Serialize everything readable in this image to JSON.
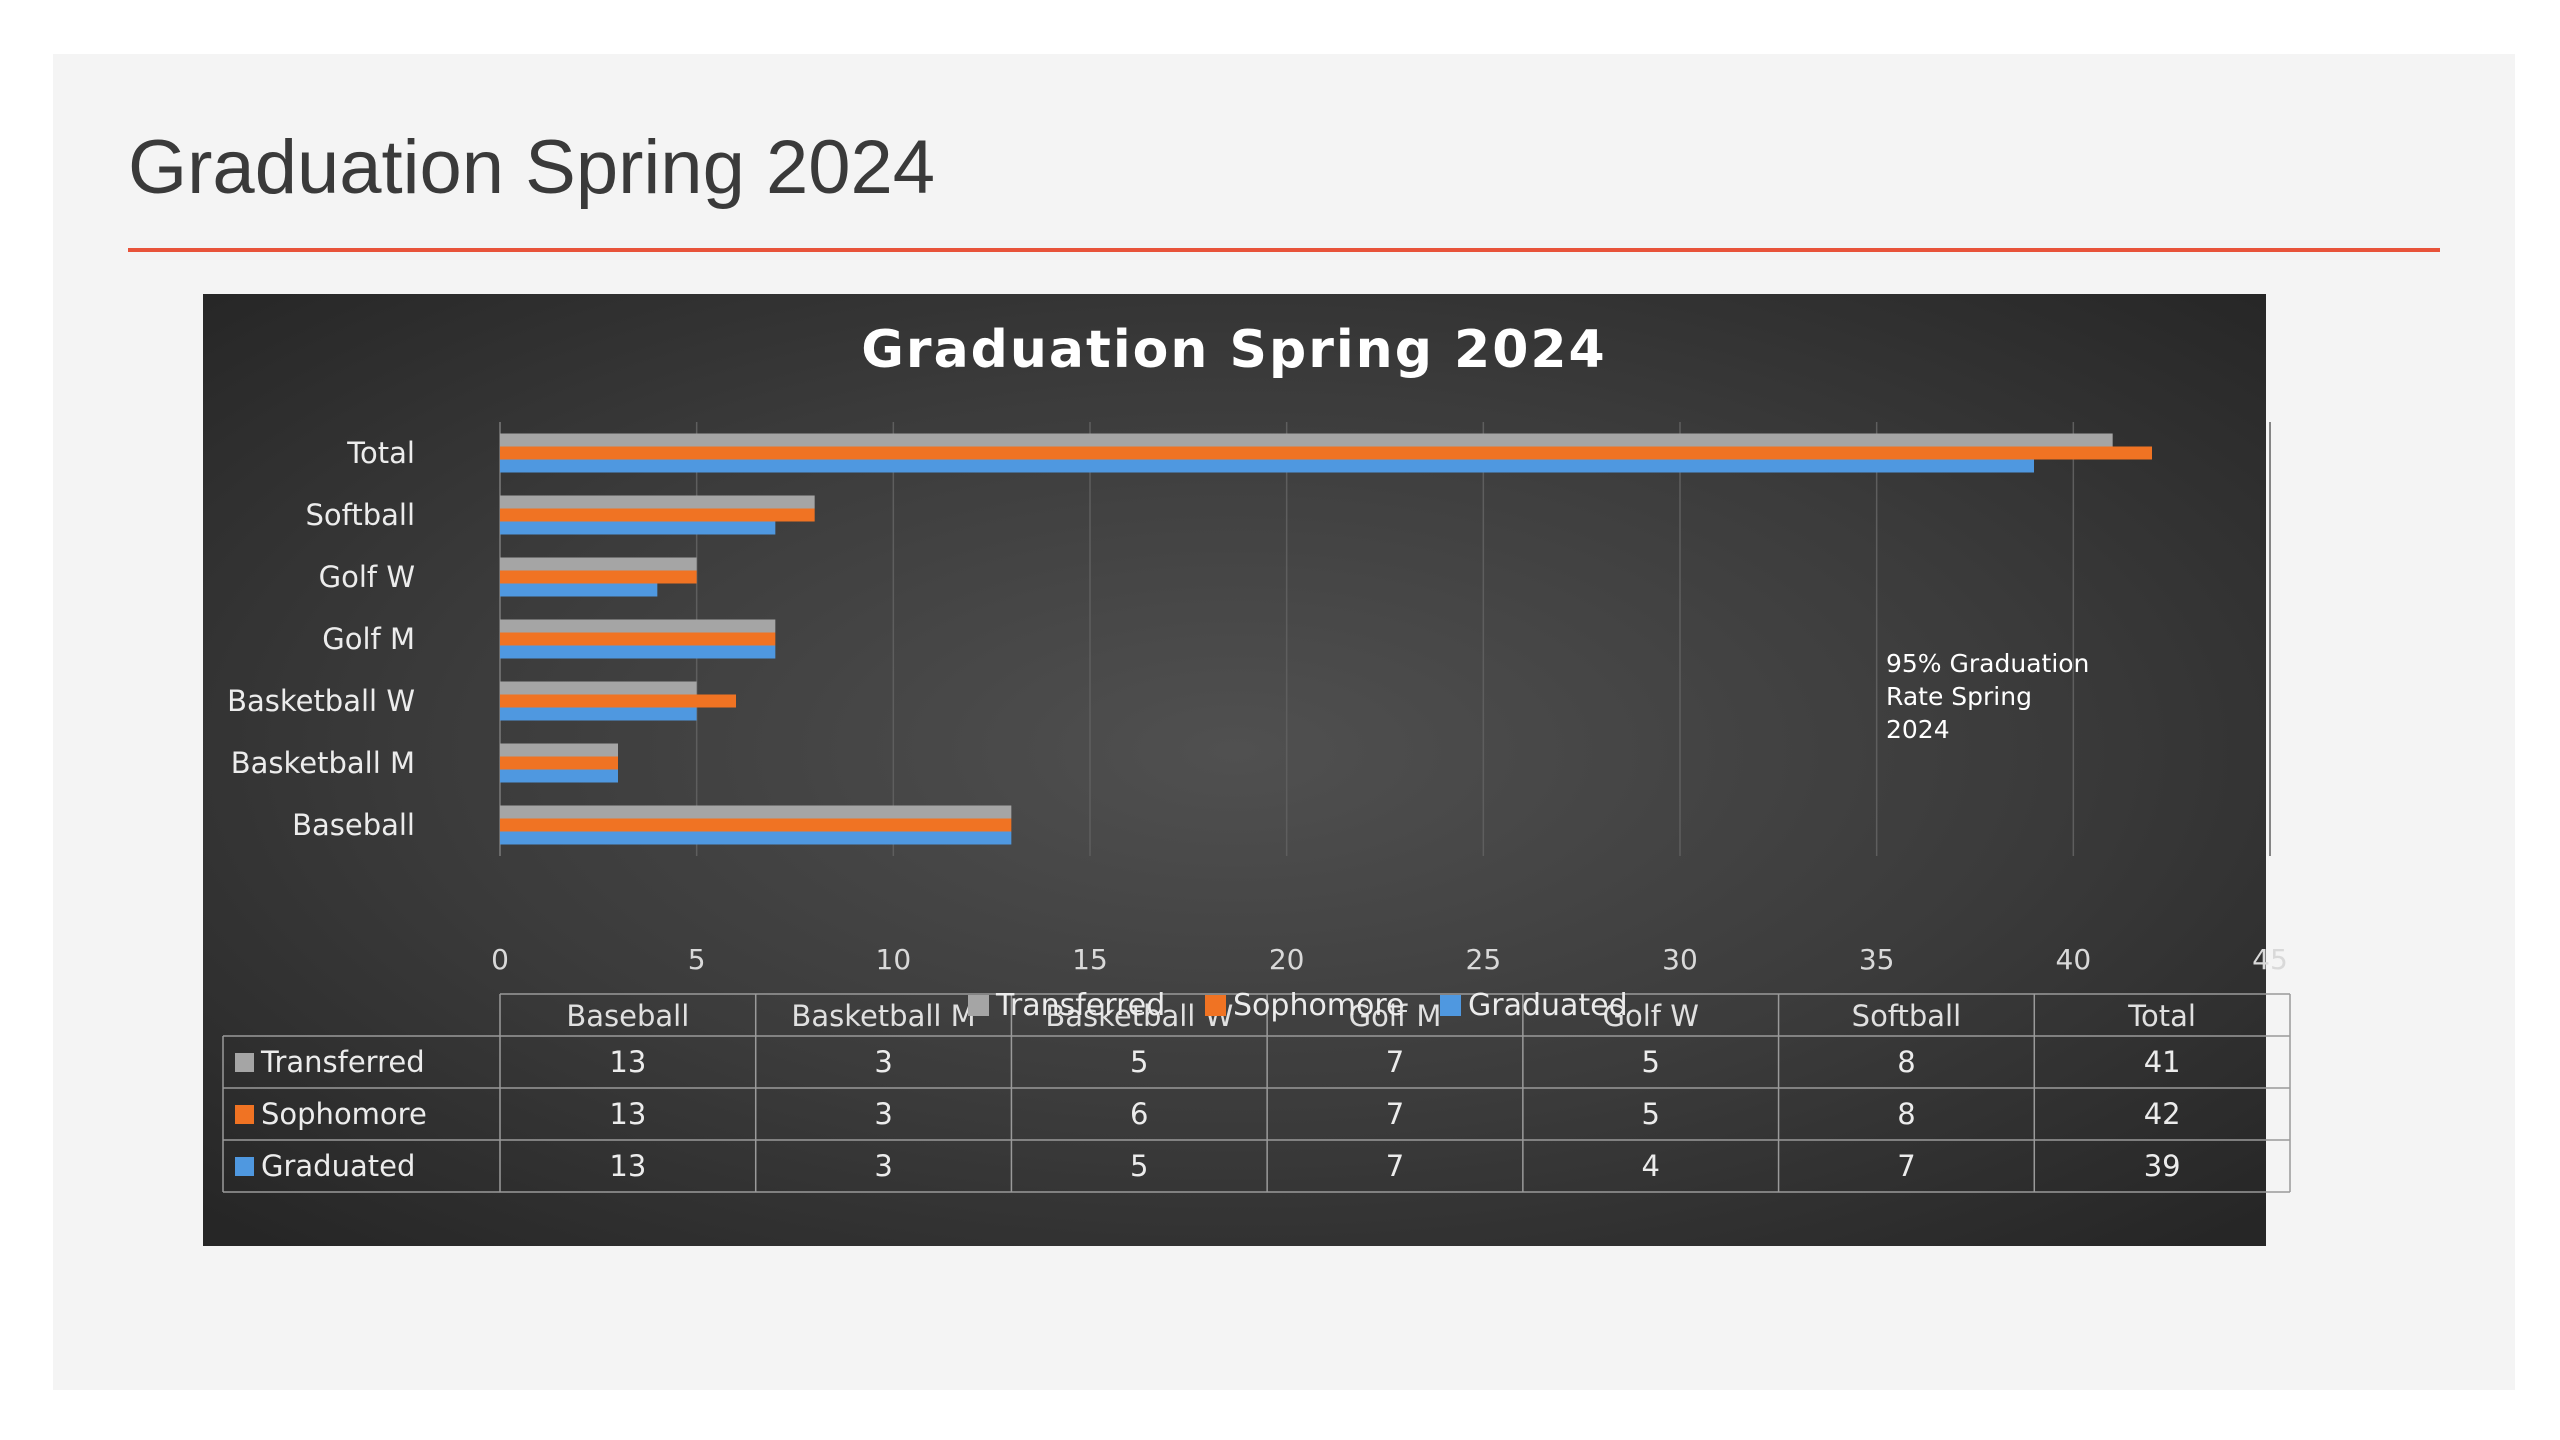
{
  "slide": {
    "title": "Graduation Spring 2024"
  },
  "colors": {
    "accent_rule": "#e8533a",
    "transferred": "#a5a5a5",
    "sophomore": "#f07323",
    "graduated": "#4f98e0"
  },
  "chart_data": {
    "type": "bar",
    "orientation": "horizontal",
    "title": "Graduation Spring 2024",
    "categories": [
      "Baseball",
      "Basketball M",
      "Basketball W",
      "Golf M",
      "Golf W",
      "Softball",
      "Total"
    ],
    "series": [
      {
        "name": "Transferred",
        "color": "#a5a5a5",
        "values": [
          13,
          3,
          5,
          7,
          5,
          8,
          41
        ]
      },
      {
        "name": "Sophomore",
        "color": "#f07323",
        "values": [
          13,
          3,
          6,
          7,
          5,
          8,
          42
        ]
      },
      {
        "name": "Graduated",
        "color": "#4f98e0",
        "values": [
          13,
          3,
          5,
          7,
          4,
          7,
          39
        ]
      }
    ],
    "xlim": [
      0,
      45
    ],
    "x_ticks": [
      0,
      5,
      10,
      15,
      20,
      25,
      30,
      35,
      40,
      45
    ],
    "grid": true,
    "data_table": true,
    "legend_position": "bottom",
    "annotation": [
      "95% Graduation",
      "Rate Spring",
      "2024"
    ]
  }
}
